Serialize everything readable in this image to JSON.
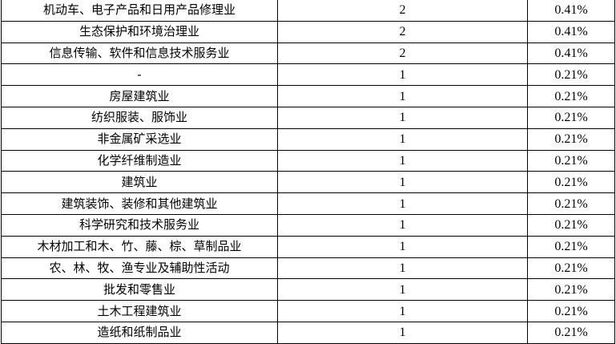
{
  "rows": [
    {
      "industry": "机动车、电子产品和日用产品修理业",
      "count": "2",
      "percent": "0.41%"
    },
    {
      "industry": "生态保护和环境治理业",
      "count": "2",
      "percent": "0.41%"
    },
    {
      "industry": "信息传输、软件和信息技术服务业",
      "count": "2",
      "percent": "0.41%"
    },
    {
      "industry": "-",
      "count": "1",
      "percent": "0.21%"
    },
    {
      "industry": "房屋建筑业",
      "count": "1",
      "percent": "0.21%"
    },
    {
      "industry": "纺织服装、服饰业",
      "count": "1",
      "percent": "0.21%"
    },
    {
      "industry": "非金属矿采选业",
      "count": "1",
      "percent": "0.21%"
    },
    {
      "industry": "化学纤维制造业",
      "count": "1",
      "percent": "0.21%"
    },
    {
      "industry": "建筑业",
      "count": "1",
      "percent": "0.21%"
    },
    {
      "industry": "建筑装饰、装修和其他建筑业",
      "count": "1",
      "percent": "0.21%"
    },
    {
      "industry": "科学研究和技术服务业",
      "count": "1",
      "percent": "0.21%"
    },
    {
      "industry": "木材加工和木、竹、藤、棕、草制品业",
      "count": "1",
      "percent": "0.21%"
    },
    {
      "industry": "农、林、牧、渔专业及辅助性活动",
      "count": "1",
      "percent": "0.21%"
    },
    {
      "industry": "批发和零售业",
      "count": "1",
      "percent": "0.21%"
    },
    {
      "industry": "土木工程建筑业",
      "count": "1",
      "percent": "0.21%"
    },
    {
      "industry": "造纸和纸制品业",
      "count": "1",
      "percent": "0.21%"
    }
  ]
}
